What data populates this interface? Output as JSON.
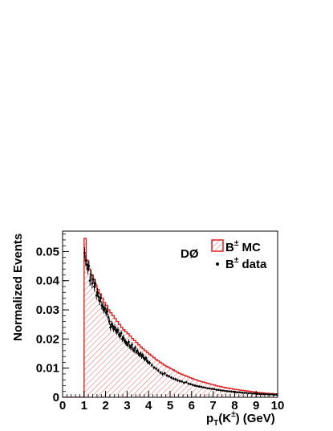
{
  "chart_data": {
    "type": "histogram",
    "experiment_label": "DØ",
    "xlabel": {
      "main": "p",
      "sub": "T",
      "rest": "(K",
      "sup": "±",
      "tail": ") (GeV)"
    },
    "ylabel": "Normalized Events",
    "xlim": [
      0,
      10
    ],
    "ylim": [
      0,
      0.057
    ],
    "x_ticks": [
      0,
      1,
      2,
      3,
      4,
      5,
      6,
      7,
      8,
      9,
      10
    ],
    "y_ticks": [
      0,
      0.01,
      0.02,
      0.03,
      0.04,
      0.05
    ],
    "y_tick_labels": [
      "0",
      "0.01",
      "0.02",
      "0.03",
      "0.04",
      "0.05"
    ],
    "legend_position": "top-right",
    "series": [
      {
        "name": "B± MC",
        "legend_base": "B",
        "legend_sup": "±",
        "legend_rest": " MC",
        "style": "hatched-histogram",
        "color": "#e02020",
        "bin_width": 0.1,
        "edges_start": 1.0,
        "values": [
          0.0545,
          0.047,
          0.044,
          0.042,
          0.0405,
          0.0385,
          0.037,
          0.0355,
          0.034,
          0.0325,
          0.0315,
          0.03,
          0.029,
          0.028,
          0.027,
          0.026,
          0.025,
          0.024,
          0.0232,
          0.0225,
          0.0218,
          0.021,
          0.0202,
          0.0195,
          0.0188,
          0.018,
          0.0173,
          0.0166,
          0.016,
          0.0154,
          0.0148,
          0.0142,
          0.0136,
          0.013,
          0.0125,
          0.012,
          0.0115,
          0.011,
          0.0106,
          0.0102,
          0.0098,
          0.0094,
          0.009,
          0.0086,
          0.0082,
          0.0079,
          0.0076,
          0.0073,
          0.007,
          0.0067,
          0.0064,
          0.0061,
          0.0059,
          0.0056,
          0.0054,
          0.0052,
          0.005,
          0.0048,
          0.0046,
          0.0044,
          0.0042,
          0.004,
          0.0038,
          0.0037,
          0.0035,
          0.0034,
          0.0032,
          0.0031,
          0.003,
          0.0028,
          0.0027,
          0.0026,
          0.0025,
          0.0024,
          0.0023,
          0.0022,
          0.0021,
          0.002,
          0.0019,
          0.0018,
          0.0017,
          0.0016,
          0.0016,
          0.0015,
          0.0014,
          0.0014,
          0.0013,
          0.0013,
          0.0012,
          0.0012
        ]
      },
      {
        "name": "B± data",
        "legend_base": "B",
        "legend_sup": "±",
        "legend_rest": " data",
        "style": "points-with-errors",
        "color": "#000000",
        "x": [
          1.025,
          1.075,
          1.125,
          1.175,
          1.225,
          1.275,
          1.325,
          1.375,
          1.425,
          1.475,
          1.525,
          1.575,
          1.625,
          1.675,
          1.725,
          1.775,
          1.825,
          1.875,
          1.925,
          1.975,
          2.025,
          2.075,
          2.125,
          2.175,
          2.225,
          2.275,
          2.325,
          2.375,
          2.425,
          2.475,
          2.525,
          2.575,
          2.625,
          2.675,
          2.725,
          2.775,
          2.825,
          2.875,
          2.925,
          2.975,
          3.025,
          3.075,
          3.125,
          3.175,
          3.225,
          3.275,
          3.325,
          3.375,
          3.425,
          3.475,
          3.525,
          3.575,
          3.625,
          3.675,
          3.725,
          3.775,
          3.825,
          3.875,
          3.925,
          3.975,
          4.05,
          4.15,
          4.25,
          4.35,
          4.45,
          4.55,
          4.65,
          4.75,
          4.85,
          4.95,
          5.05,
          5.15,
          5.25,
          5.35,
          5.45,
          5.55,
          5.65,
          5.75,
          5.85,
          5.95,
          6.05,
          6.15,
          6.25,
          6.35,
          6.45,
          6.55,
          6.65,
          6.75,
          6.85,
          6.95,
          7.05,
          7.15,
          7.25,
          7.35,
          7.45,
          7.55,
          7.65,
          7.75,
          7.85,
          7.95,
          8.05,
          8.15,
          8.25,
          8.35,
          8.45,
          8.55,
          8.65,
          8.75,
          8.85,
          8.95,
          9.05,
          9.15,
          9.25,
          9.35,
          9.45,
          9.55,
          9.65,
          9.75,
          9.85,
          9.95
        ],
        "y": [
          0.0495,
          0.047,
          0.0455,
          0.044,
          0.045,
          0.04,
          0.042,
          0.039,
          0.0405,
          0.038,
          0.039,
          0.035,
          0.036,
          0.0345,
          0.033,
          0.034,
          0.0315,
          0.031,
          0.03,
          0.0305,
          0.029,
          0.0295,
          0.0275,
          0.026,
          0.024,
          0.025,
          0.0245,
          0.0235,
          0.024,
          0.023,
          0.0225,
          0.023,
          0.0215,
          0.021,
          0.022,
          0.02,
          0.0205,
          0.0195,
          0.019,
          0.0185,
          0.018,
          0.019,
          0.0175,
          0.017,
          0.018,
          0.0165,
          0.016,
          0.017,
          0.0155,
          0.016,
          0.015,
          0.0145,
          0.015,
          0.014,
          0.0145,
          0.0135,
          0.013,
          0.0135,
          0.0125,
          0.012,
          0.0118,
          0.011,
          0.0102,
          0.0098,
          0.0092,
          0.0085,
          0.008,
          0.0082,
          0.0075,
          0.0072,
          0.0068,
          0.0064,
          0.0062,
          0.0058,
          0.0056,
          0.0054,
          0.005,
          0.0052,
          0.0047,
          0.0045,
          0.0043,
          0.004,
          0.0039,
          0.0037,
          0.0036,
          0.0034,
          0.0033,
          0.0031,
          0.003,
          0.0029,
          0.0028,
          0.0026,
          0.0025,
          0.0024,
          0.0023,
          0.0022,
          0.0021,
          0.002,
          0.002,
          0.0019,
          0.0018,
          0.0017,
          0.0017,
          0.0016,
          0.0015,
          0.0015,
          0.0014,
          0.0014,
          0.0013,
          0.0013,
          0.0012,
          0.0012,
          0.0011,
          0.0011,
          0.0011,
          0.001,
          0.001,
          0.001,
          0.0009,
          0.0009
        ],
        "yerr": [
          0.002,
          0.0019,
          0.0018,
          0.0018,
          0.0018,
          0.0017,
          0.0017,
          0.0016,
          0.0016,
          0.0016,
          0.0016,
          0.0015,
          0.0015,
          0.0015,
          0.0014,
          0.0014,
          0.0014,
          0.0014,
          0.0013,
          0.0013,
          0.0013,
          0.0013,
          0.0012,
          0.0012,
          0.0012,
          0.0012,
          0.0012,
          0.0011,
          0.0011,
          0.0011,
          0.0011,
          0.0011,
          0.001,
          0.001,
          0.001,
          0.001,
          0.001,
          0.001,
          0.001,
          0.0009,
          0.0009,
          0.0009,
          0.0009,
          0.0009,
          0.0009,
          0.0009,
          0.0008,
          0.0008,
          0.0008,
          0.0008,
          0.0008,
          0.0008,
          0.0008,
          0.0008,
          0.0008,
          0.0007,
          0.0007,
          0.0007,
          0.0007,
          0.0007,
          0.0007,
          0.0007,
          0.0006,
          0.0006,
          0.0006,
          0.0006,
          0.0006,
          0.0006,
          0.0005,
          0.0005,
          0.0005,
          0.0005,
          0.0005,
          0.0005,
          0.0005,
          0.0004,
          0.0004,
          0.0004,
          0.0004,
          0.0004,
          0.0004,
          0.0004,
          0.0004,
          0.0004,
          0.0004,
          0.0003,
          0.0003,
          0.0003,
          0.0003,
          0.0003,
          0.0003,
          0.0003,
          0.0003,
          0.0003,
          0.0003,
          0.0003,
          0.0003,
          0.0003,
          0.0003,
          0.0003,
          0.0003,
          0.0003,
          0.0003,
          0.0003,
          0.0002,
          0.0002,
          0.0002,
          0.0002,
          0.0002,
          0.0002,
          0.0002,
          0.0002,
          0.0002,
          0.0002,
          0.0002,
          0.0002,
          0.0002,
          0.0002,
          0.0002,
          0.0002
        ]
      }
    ]
  }
}
